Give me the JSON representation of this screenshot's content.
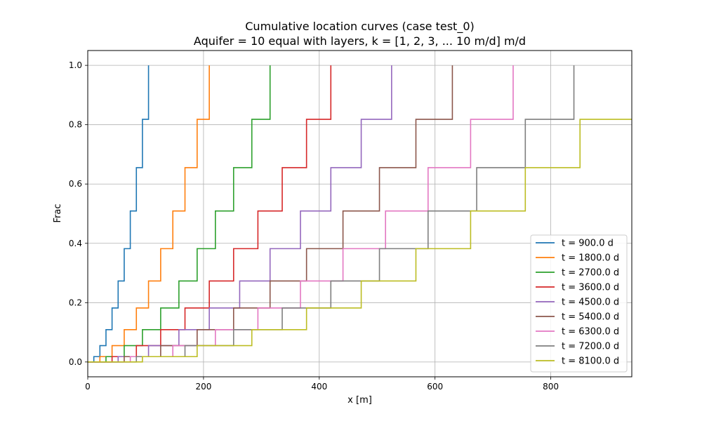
{
  "chart_data": {
    "type": "line",
    "title_line1": "Cumulative location curves (case test_0)",
    "title_line2": "Aquifer = 10 equal with layers, k = [1, 2, 3, ... 10 m/d] m/d",
    "xlabel": "x [m]",
    "ylabel": "Frac",
    "xlim": [
      0,
      940
    ],
    "ylim": [
      -0.05,
      1.05
    ],
    "xticks": [
      0,
      200,
      400,
      600,
      800
    ],
    "yticks": [
      0.0,
      0.2,
      0.4,
      0.6,
      0.8,
      1.0
    ],
    "xtick_labels": [
      "0",
      "200",
      "400",
      "600",
      "800"
    ],
    "ytick_labels": [
      "0.0",
      "0.2",
      "0.4",
      "0.6",
      "0.8",
      "1.0"
    ],
    "grid": true,
    "legend_position": "lower-right",
    "frac_levels": [
      0.0,
      0.018,
      0.055,
      0.109,
      0.182,
      0.273,
      0.382,
      0.509,
      0.655,
      0.818,
      1.0
    ],
    "series": [
      {
        "name": "t = 900.0 d",
        "color": "#1f77b4",
        "x": [
          0,
          10.5,
          21,
          31.5,
          42,
          52.5,
          63,
          73.5,
          84,
          94.5,
          105
        ]
      },
      {
        "name": "t = 1800.0 d",
        "color": "#ff7f0e",
        "x": [
          0,
          21,
          42,
          63,
          84,
          105,
          126,
          147,
          168,
          189,
          210
        ]
      },
      {
        "name": "t = 2700.0 d",
        "color": "#2ca02c",
        "x": [
          0,
          31.5,
          63,
          94.5,
          126,
          157.5,
          189,
          220.5,
          252,
          283.5,
          315
        ]
      },
      {
        "name": "t = 3600.0 d",
        "color": "#d62728",
        "x": [
          0,
          42,
          84,
          126,
          168,
          210,
          252,
          294,
          336,
          378,
          420
        ]
      },
      {
        "name": "t = 4500.0 d",
        "color": "#9467bd",
        "x": [
          0,
          52.5,
          105,
          157.5,
          210,
          262.5,
          315,
          367.5,
          420,
          472.5,
          525
        ]
      },
      {
        "name": "t = 5400.0 d",
        "color": "#8c564b",
        "x": [
          0,
          63,
          126,
          189,
          252,
          315,
          378,
          441,
          504,
          567,
          630
        ]
      },
      {
        "name": "t = 6300.0 d",
        "color": "#e377c2",
        "x": [
          0,
          73.5,
          147,
          220.5,
          294,
          367.5,
          441,
          514.5,
          588,
          661.5,
          735
        ]
      },
      {
        "name": "t = 7200.0 d",
        "color": "#7f7f7f",
        "x": [
          0,
          84,
          168,
          252,
          336,
          420,
          504,
          588,
          672,
          756,
          840
        ]
      },
      {
        "name": "t = 8100.0 d",
        "color": "#bcbd22",
        "x": [
          0,
          94.5,
          189,
          283.5,
          378,
          472.5,
          567,
          661.5,
          756,
          850.5,
          945
        ]
      }
    ]
  }
}
